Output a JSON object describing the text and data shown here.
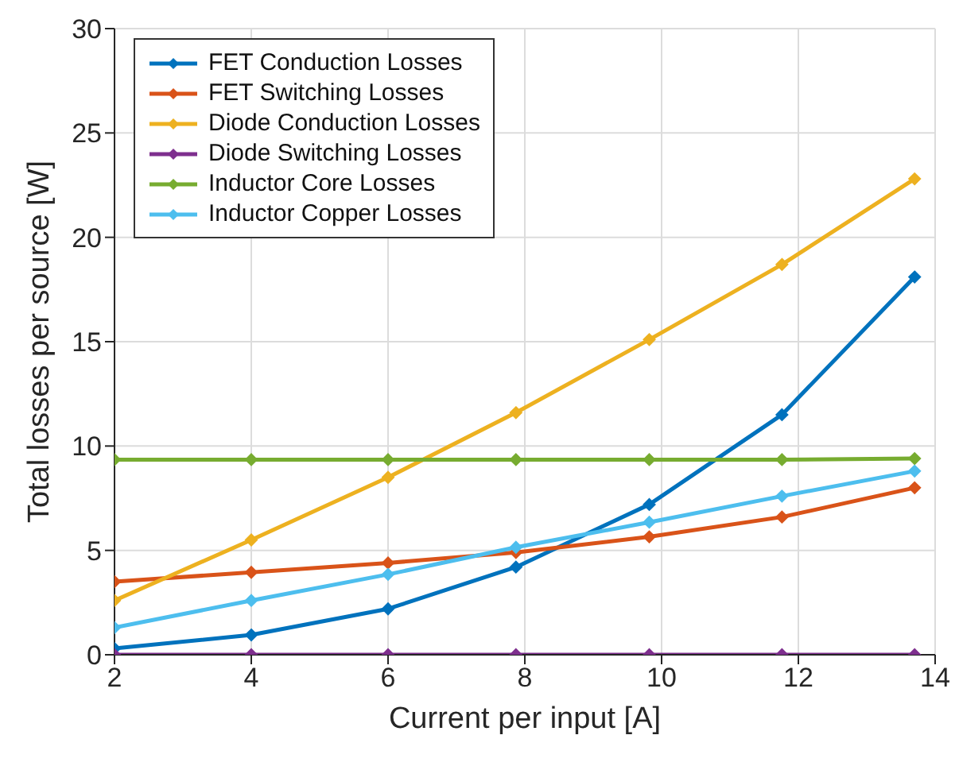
{
  "chart_data": {
    "type": "line",
    "xlabel": "Current per input [A]",
    "ylabel": "Total losses per source [W]",
    "x": [
      2,
      4,
      6,
      7.87,
      9.82,
      11.76,
      13.7
    ],
    "series": [
      {
        "name": "FET Conduction Losses",
        "color": "#0072bd",
        "values": [
          0.3,
          0.95,
          2.2,
          4.2,
          7.2,
          11.5,
          18.1
        ]
      },
      {
        "name": "FET Switching Losses",
        "color": "#d95319",
        "values": [
          3.5,
          3.95,
          4.4,
          4.9,
          5.65,
          6.6,
          8.0
        ]
      },
      {
        "name": "Diode Conduction Losses",
        "color": "#edb120",
        "values": [
          2.6,
          5.5,
          8.5,
          11.6,
          15.1,
          18.7,
          22.8
        ]
      },
      {
        "name": "Diode Switching Losses",
        "color": "#7e2f8e",
        "values": [
          0,
          0,
          0,
          0,
          0,
          0,
          0
        ]
      },
      {
        "name": "Inductor Core Losses",
        "color": "#77ac30",
        "values": [
          9.35,
          9.35,
          9.35,
          9.35,
          9.35,
          9.35,
          9.4
        ]
      },
      {
        "name": "Inductor Copper Losses",
        "color": "#4dbeee",
        "values": [
          1.3,
          2.6,
          3.85,
          5.15,
          6.35,
          7.6,
          8.8
        ]
      }
    ],
    "xlim": [
      2,
      14
    ],
    "xticks": [
      2,
      4,
      6,
      8,
      10,
      12,
      14
    ],
    "ylim": [
      0,
      30
    ],
    "yticks": [
      0,
      5,
      10,
      15,
      20,
      25,
      30
    ],
    "grid": true,
    "legend": "top left",
    "marker": "diamond",
    "line_style": "solid"
  }
}
